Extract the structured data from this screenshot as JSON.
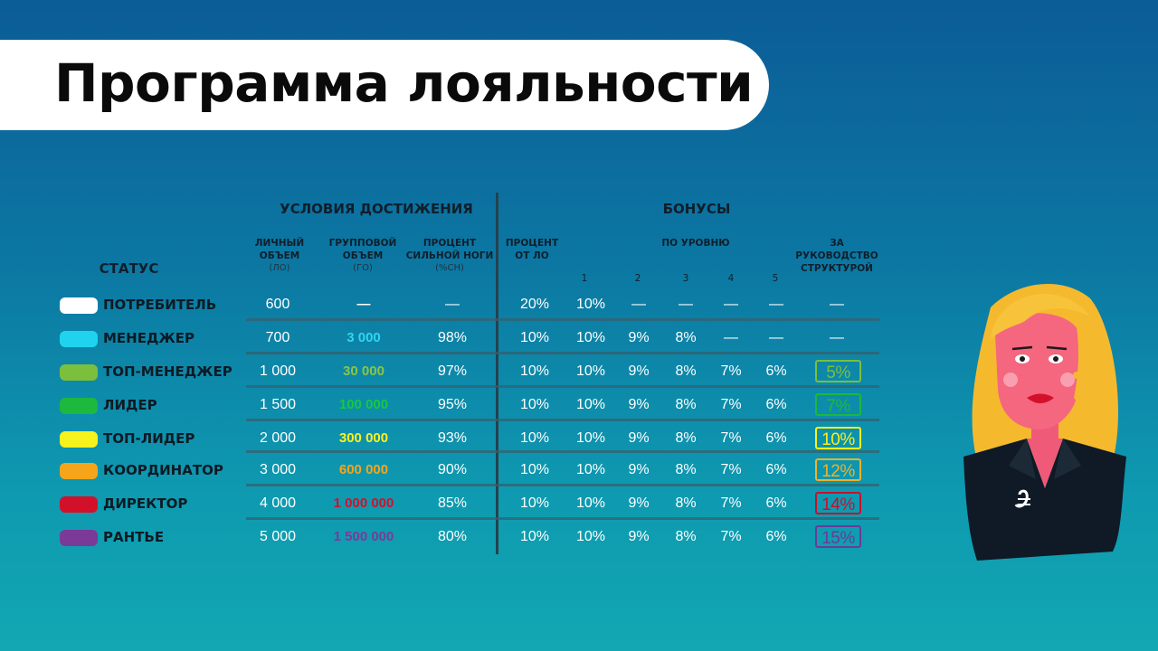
{
  "title": "Программа лояльности",
  "headers": {
    "conditions": "УСЛОВИЯ ДОСТИЖЕНИЯ",
    "bonuses": "БОНУСЫ",
    "status": "СТАТУС",
    "personal_volume": "ЛИЧНЫЙ ОБЪЕМ",
    "personal_volume_abbr": "(ЛО)",
    "group_volume": "ГРУППОВОЙ ОБЪЕМ",
    "group_volume_abbr": "(ГО)",
    "strong_leg": "ПРОЦЕНТ СИЛЬНОЙ НОГИ",
    "strong_leg_abbr": "(%СН)",
    "percent_lo": "ПРОЦЕНТ ОТ ЛО",
    "by_level": "ПО УРОВНЮ",
    "levels": [
      "1",
      "2",
      "3",
      "4",
      "5"
    ],
    "management": "ЗА РУКОВОДСТВО СТРУКТУРОЙ"
  },
  "rows": [
    {
      "status": "ПОТРЕБИТЕЛЬ",
      "color": "#ffffff",
      "lo": "600",
      "go": "—",
      "go_color": "#ffffff",
      "sn": "—",
      "pct": "20%",
      "l1": "10%",
      "l2": "—",
      "l3": "—",
      "l4": "—",
      "l5": "—",
      "mgmt": "—",
      "mgmt_color": ""
    },
    {
      "status": "МЕНЕДЖЕР",
      "color": "#1fd3ef",
      "lo": "700",
      "go": "3 000",
      "go_color": "#2fd6f2",
      "sn": "98%",
      "pct": "10%",
      "l1": "10%",
      "l2": "9%",
      "l3": "8%",
      "l4": "—",
      "l5": "—",
      "mgmt": "—",
      "mgmt_color": ""
    },
    {
      "status": "ТОП-МЕНЕДЖЕР",
      "color": "#7bbf3c",
      "lo": "1 000",
      "go": "30 000",
      "go_color": "#8cc63f",
      "sn": "97%",
      "pct": "10%",
      "l1": "10%",
      "l2": "9%",
      "l3": "8%",
      "l4": "7%",
      "l5": "6%",
      "mgmt": "5%",
      "mgmt_color": "#7bbf3c"
    },
    {
      "status": "ЛИДЕР",
      "color": "#1db83e",
      "lo": "1 500",
      "go": "100 000",
      "go_color": "#16c93e",
      "sn": "95%",
      "pct": "10%",
      "l1": "10%",
      "l2": "9%",
      "l3": "8%",
      "l4": "7%",
      "l5": "6%",
      "mgmt": "7%",
      "mgmt_color": "#1db83e"
    },
    {
      "status": "ТОП-ЛИДЕР",
      "color": "#f6f21d",
      "lo": "2 000",
      "go": "300 000",
      "go_color": "#fbf21f",
      "sn": "93%",
      "pct": "10%",
      "l1": "10%",
      "l2": "9%",
      "l3": "8%",
      "l4": "7%",
      "l5": "6%",
      "mgmt": "10%",
      "mgmt_color": "#f6f21d"
    },
    {
      "status": "КООРДИНАТОР",
      "color": "#f6a51b",
      "lo": "3 000",
      "go": "600 000",
      "go_color": "#f6a51b",
      "sn": "90%",
      "pct": "10%",
      "l1": "10%",
      "l2": "9%",
      "l3": "8%",
      "l4": "7%",
      "l5": "6%",
      "mgmt": "12%",
      "mgmt_color": "#f0b12b"
    },
    {
      "status": "ДИРЕКТОР",
      "color": "#d3102a",
      "lo": "4 000",
      "go": "1 000 000",
      "go_color": "#d3102a",
      "sn": "85%",
      "pct": "10%",
      "l1": "10%",
      "l2": "9%",
      "l3": "8%",
      "l4": "7%",
      "l5": "6%",
      "mgmt": "14%",
      "mgmt_color": "#c8102e"
    },
    {
      "status": "РАНТЬЕ",
      "color": "#7b3a98",
      "lo": "5 000",
      "go": "1 500 000",
      "go_color": "#7b3a98",
      "sn": "80%",
      "pct": "10%",
      "l1": "10%",
      "l2": "9%",
      "l3": "8%",
      "l4": "7%",
      "l5": "6%",
      "mgmt": "15%",
      "mgmt_color": "#6b3b98"
    }
  ]
}
